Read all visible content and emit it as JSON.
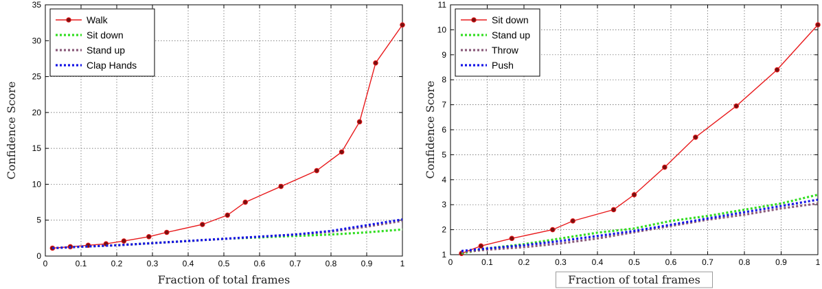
{
  "chart_data": [
    {
      "type": "line",
      "xlabel": "Fraction of total frames",
      "ylabel": "Confidence Score",
      "xlim": [
        0,
        1
      ],
      "ylim": [
        0,
        35
      ],
      "xticks": [
        "0",
        "0.1",
        "0.2",
        "0.3",
        "0.4",
        "0.5",
        "0.6",
        "0.7",
        "0.8",
        "0.9",
        "1"
      ],
      "yticks": [
        "0",
        "5",
        "10",
        "15",
        "20",
        "25",
        "30",
        "35"
      ],
      "xtick_values": [
        0,
        0.1,
        0.2,
        0.3,
        0.4,
        0.5,
        0.6,
        0.7,
        0.8,
        0.9,
        1
      ],
      "ytick_values": [
        0,
        5,
        10,
        15,
        20,
        25,
        30,
        35
      ],
      "grid": true,
      "legend_position": "top-left",
      "series": [
        {
          "name": "Walk",
          "color": "#e8191b",
          "style": "solid-markers",
          "x": [
            0.02,
            0.07,
            0.12,
            0.17,
            0.22,
            0.29,
            0.34,
            0.44,
            0.51,
            0.56,
            0.66,
            0.76,
            0.83,
            0.88,
            0.925,
            1.0
          ],
          "y": [
            1.1,
            1.3,
            1.5,
            1.7,
            2.1,
            2.7,
            3.3,
            4.4,
            5.7,
            7.5,
            9.7,
            11.9,
            14.5,
            18.7,
            26.9,
            32.2
          ]
        },
        {
          "name": "Sit down",
          "color": "#33dd22",
          "style": "dotted",
          "x": [
            0.02,
            0.1,
            0.2,
            0.3,
            0.4,
            0.5,
            0.6,
            0.7,
            0.8,
            0.9,
            1.0
          ],
          "y": [
            1.1,
            1.3,
            1.5,
            1.8,
            2.1,
            2.4,
            2.6,
            2.8,
            3.0,
            3.3,
            3.7
          ]
        },
        {
          "name": "Stand up",
          "color": "#8a5a7a",
          "style": "dotted",
          "x": [
            0.02,
            0.1,
            0.2,
            0.3,
            0.4,
            0.5,
            0.6,
            0.7,
            0.8,
            0.9,
            1.0
          ],
          "y": [
            1.1,
            1.3,
            1.5,
            1.8,
            2.1,
            2.4,
            2.7,
            3.0,
            3.4,
            4.1,
            4.9
          ]
        },
        {
          "name": "Clap Hands",
          "color": "#1515e6",
          "style": "dotted",
          "x": [
            0.02,
            0.1,
            0.2,
            0.3,
            0.4,
            0.5,
            0.6,
            0.7,
            0.8,
            0.9,
            1.0
          ],
          "y": [
            1.1,
            1.3,
            1.5,
            1.8,
            2.1,
            2.4,
            2.7,
            3.0,
            3.5,
            4.3,
            5.1
          ]
        }
      ]
    },
    {
      "type": "line",
      "xlabel": "Fraction of total frames",
      "ylabel": "Confidence Score",
      "xlim": [
        0,
        1
      ],
      "ylim": [
        1,
        11
      ],
      "xticks": [
        "0",
        "0.1",
        "0.2",
        "0.3",
        "0.4",
        "0.5",
        "0.6",
        "0.7",
        "0.8",
        "0.9",
        "1"
      ],
      "yticks": [
        "1",
        "2",
        "3",
        "4",
        "5",
        "6",
        "7",
        "8",
        "9",
        "10",
        "11"
      ],
      "xtick_values": [
        0,
        0.1,
        0.2,
        0.3,
        0.4,
        0.5,
        0.6,
        0.7,
        0.8,
        0.9,
        1
      ],
      "ytick_values": [
        1,
        2,
        3,
        4,
        5,
        6,
        7,
        8,
        9,
        10,
        11
      ],
      "grid": true,
      "legend_position": "top-left",
      "series": [
        {
          "name": "Sit down",
          "color": "#e8191b",
          "style": "solid-markers",
          "x": [
            0.03,
            0.083,
            0.167,
            0.278,
            0.333,
            0.444,
            0.5,
            0.583,
            0.667,
            0.778,
            0.889,
            1.0
          ],
          "y": [
            1.05,
            1.35,
            1.65,
            2.0,
            2.35,
            2.8,
            3.4,
            4.5,
            5.7,
            6.95,
            8.4,
            10.2
          ]
        },
        {
          "name": "Stand up",
          "color": "#33dd22",
          "style": "dotted",
          "x": [
            0.03,
            0.1,
            0.2,
            0.3,
            0.4,
            0.5,
            0.6,
            0.7,
            0.8,
            0.9,
            1.0
          ],
          "y": [
            1.05,
            1.25,
            1.42,
            1.65,
            1.88,
            2.05,
            2.35,
            2.55,
            2.8,
            3.05,
            3.4
          ]
        },
        {
          "name": "Throw",
          "color": "#8a5a7a",
          "style": "dotted",
          "x": [
            0.03,
            0.1,
            0.2,
            0.3,
            0.4,
            0.5,
            0.6,
            0.7,
            0.8,
            0.9,
            1.0
          ],
          "y": [
            1.1,
            1.2,
            1.3,
            1.45,
            1.65,
            1.9,
            2.15,
            2.4,
            2.6,
            2.85,
            3.05
          ]
        },
        {
          "name": "Push",
          "color": "#1515e6",
          "style": "dotted",
          "x": [
            0.03,
            0.1,
            0.2,
            0.3,
            0.4,
            0.5,
            0.6,
            0.7,
            0.8,
            0.9,
            1.0
          ],
          "y": [
            1.15,
            1.25,
            1.38,
            1.55,
            1.75,
            1.95,
            2.2,
            2.45,
            2.7,
            2.95,
            3.2
          ]
        }
      ]
    }
  ]
}
